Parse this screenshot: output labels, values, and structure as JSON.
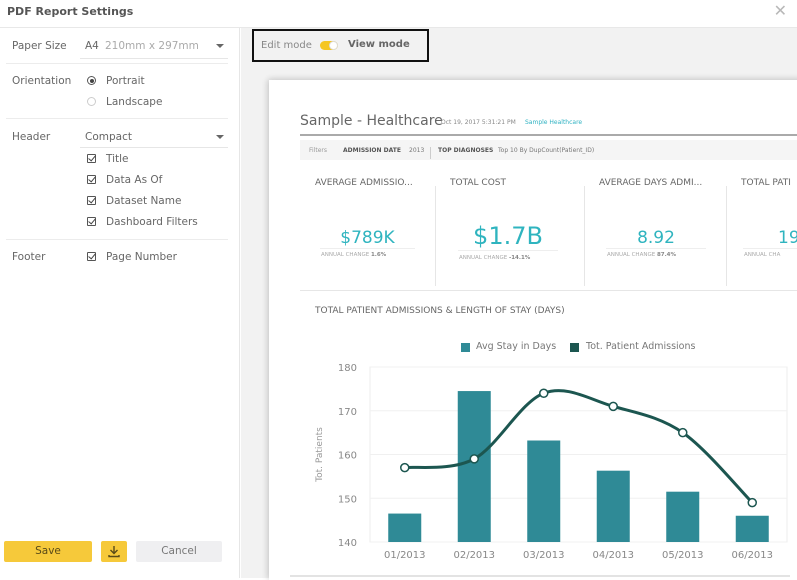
{
  "dialog": {
    "title": "PDF Report Settings",
    "close_icon": "close-icon"
  },
  "settings": {
    "paper_size": {
      "label": "Paper Size",
      "value": "A4",
      "dimensions": "210mm x 297mm"
    },
    "orientation": {
      "label": "Orientation",
      "options": [
        {
          "label": "Portrait",
          "selected": true
        },
        {
          "label": "Landscape",
          "selected": false
        }
      ]
    },
    "header": {
      "label": "Header",
      "value": "Compact",
      "options": [
        {
          "label": "Title",
          "checked": true
        },
        {
          "label": "Data As Of",
          "checked": true
        },
        {
          "label": "Dataset Name",
          "checked": true
        },
        {
          "label": "Dashboard Filters",
          "checked": true
        }
      ]
    },
    "footer": {
      "label": "Footer",
      "options": [
        {
          "label": "Page Number",
          "checked": true
        }
      ]
    }
  },
  "buttons": {
    "save": "Save",
    "download_icon": "download-icon",
    "cancel": "Cancel"
  },
  "mode": {
    "edit_label": "Edit mode",
    "view_label": "View mode",
    "view_mode_on": true
  },
  "report": {
    "title": "Sample - Healthcare",
    "date": "Oct 19, 2017 5:31:21 PM",
    "dataset": "Sample Healthcare",
    "filters": {
      "label": "Filters",
      "items": [
        {
          "name": "ADMISSION DATE",
          "value": "2013"
        },
        {
          "name": "TOP DIAGNOSES",
          "value": "Top 10 By DupCount(Patient_ID)"
        }
      ]
    },
    "kpis": [
      {
        "name": "AVERAGE ADMISSIO...",
        "value": "$789K",
        "change_label": "ANNUAL CHANGE",
        "change": "1.6%"
      },
      {
        "name": "TOTAL COST",
        "value": "$1.7B",
        "change_label": "ANNUAL CHANGE",
        "change": "-14.1%"
      },
      {
        "name": "AVERAGE DAYS ADMI...",
        "value": "8.92",
        "change_label": "ANNUAL CHANGE",
        "change": "87.4%"
      },
      {
        "name": "TOTAL PATI",
        "value": "19",
        "change_label": "ANNUAL CHA",
        "change": ""
      }
    ]
  },
  "chart_data": {
    "type": "bar",
    "title": "TOTAL PATIENT ADMISSIONS & LENGTH OF STAY (DAYS)",
    "categories": [
      "01/2013",
      "02/2013",
      "03/2013",
      "04/2013",
      "05/2013",
      "06/2013"
    ],
    "series": [
      {
        "name": "Avg Stay in Days",
        "type": "bar",
        "color": "#2f8a96",
        "values": [
          146.5,
          174.5,
          163.2,
          156.3,
          151.5,
          146
        ]
      },
      {
        "name": "Tot. Patient Admissions",
        "type": "line",
        "color": "#1c5650",
        "values": [
          157,
          159,
          174,
          171,
          165,
          149
        ]
      }
    ],
    "xlabel": "",
    "ylabel": "Tot. Patients",
    "ylim": [
      140,
      180
    ],
    "yticks": [
      140,
      150,
      160,
      170,
      180
    ],
    "grid": true,
    "legend": "top-center"
  }
}
